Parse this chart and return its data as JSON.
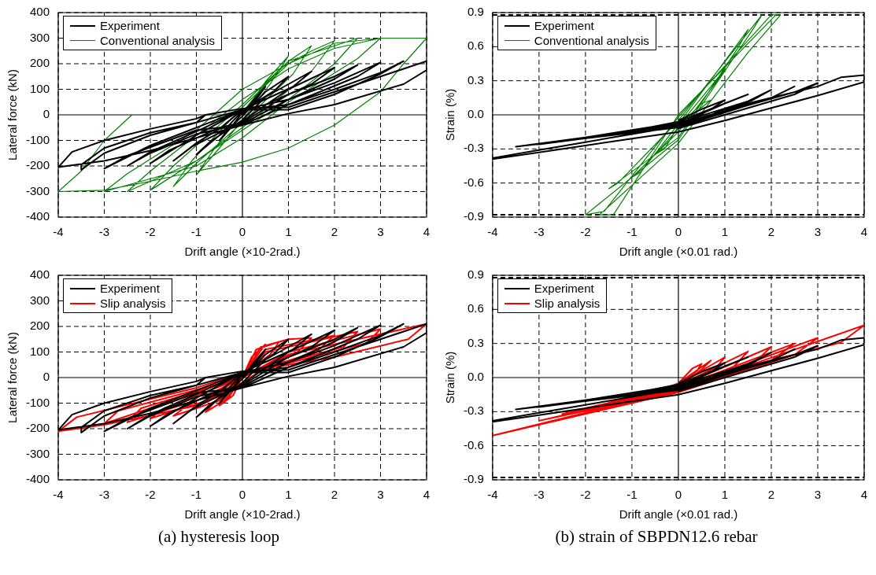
{
  "chart_data": [
    {
      "type": "line",
      "xlabel": "Drift angle (×10-2rad.)",
      "ylabel": "Lateral force (kN)",
      "xlim": [
        -4,
        4
      ],
      "xticks": [
        -4,
        -3,
        -2,
        -1,
        0,
        1,
        2,
        3,
        4
      ],
      "ylim": [
        -400,
        400
      ],
      "yticks": [
        -400,
        -300,
        -200,
        -100,
        0,
        100,
        200,
        300,
        400
      ],
      "grid": true,
      "legend": "top left",
      "marker": "none",
      "line_style": "solid",
      "series": [
        {
          "name": "Experiment",
          "color": "#000000",
          "x": [
            0,
            0.25,
            0.5,
            0.3,
            0,
            -0.25,
            -0.5,
            -0.3,
            0,
            0.5,
            1,
            0.7,
            0,
            -0.5,
            -1,
            -0.7,
            0,
            0.5,
            1,
            1.5,
            1.1,
            0,
            -0.5,
            -1,
            -1.5,
            -1.1,
            0,
            1,
            2,
            1.5,
            0.5,
            0,
            -1,
            -2,
            -1.6,
            -0.5,
            0,
            1,
            2,
            2.5,
            2,
            1,
            0,
            -1,
            -2,
            -2.5,
            -2,
            -1,
            0,
            1,
            2,
            3,
            2.5,
            1,
            0,
            -1,
            -2,
            -3,
            -2.5,
            -1,
            0,
            1,
            2,
            3,
            3.5,
            3,
            2,
            1,
            0,
            -1,
            -2,
            -3,
            -3.5,
            -3.5,
            -3,
            -2,
            -1,
            -0.8,
            0,
            1,
            2,
            3,
            4,
            4,
            3.5,
            2,
            1,
            0,
            -1,
            -2,
            -3,
            -4,
            -3.7,
            -3,
            -2,
            -1,
            -0.8
          ],
          "values": [
            0,
            60,
            110,
            60,
            10,
            -50,
            -100,
            -55,
            -5,
            90,
            150,
            95,
            15,
            -80,
            -155,
            -105,
            -20,
            70,
            120,
            170,
            110,
            20,
            -55,
            -110,
            -180,
            -125,
            -25,
            100,
            185,
            120,
            40,
            20,
            -80,
            -190,
            -140,
            -50,
            -30,
            80,
            150,
            195,
            140,
            60,
            20,
            -65,
            -145,
            -200,
            -150,
            -75,
            -35,
            60,
            125,
            205,
            150,
            40,
            20,
            -50,
            -120,
            -210,
            -160,
            -60,
            -40,
            40,
            100,
            165,
            210,
            160,
            80,
            20,
            20,
            -30,
            -80,
            -150,
            -215,
            -195,
            -130,
            -70,
            -30,
            0,
            25,
            30,
            90,
            150,
            210,
            175,
            120,
            40,
            5,
            -40,
            -90,
            -140,
            -180,
            -205,
            -145,
            -100,
            -55,
            -15,
            0
          ]
        },
        {
          "name": "Conventional analysis",
          "color": "#008000",
          "x": [
            0,
            0.5,
            1,
            0.6,
            0,
            -0.5,
            -1,
            -0.6,
            0,
            0.5,
            1,
            1.5,
            1.1,
            0,
            -1,
            -1.5,
            -1.1,
            0,
            1,
            1.5,
            2,
            1.5,
            0,
            -1,
            -2,
            -1.5,
            0,
            1,
            2,
            2.5,
            2,
            1,
            0,
            -1,
            -2,
            -2.5,
            -2,
            -1,
            0,
            1,
            2,
            3,
            2.5,
            1,
            0,
            -1,
            -2,
            -3,
            -2.5,
            -1,
            0,
            1,
            2,
            3,
            4,
            3.5,
            3,
            2,
            1,
            0,
            -1,
            -2,
            -3,
            -4,
            -3.5,
            -3,
            -2.4
          ],
          "values": [
            0,
            130,
            230,
            120,
            -20,
            -130,
            -235,
            -130,
            10,
            120,
            210,
            270,
            160,
            -30,
            -190,
            -280,
            -180,
            30,
            200,
            250,
            290,
            170,
            -50,
            -180,
            -295,
            -200,
            40,
            210,
            270,
            300,
            200,
            60,
            -60,
            -180,
            -260,
            -300,
            -220,
            -80,
            60,
            180,
            260,
            300,
            220,
            50,
            -90,
            -200,
            -250,
            -300,
            -230,
            -60,
            100,
            200,
            280,
            300,
            300,
            200,
            90,
            -40,
            -130,
            -185,
            -220,
            -260,
            -295,
            -300,
            -220,
            -100,
            0
          ]
        }
      ]
    },
    {
      "type": "line",
      "xlabel": "Drift angle (×0.01 rad.)",
      "ylabel": "Strain (%)",
      "xlim": [
        -4,
        4
      ],
      "xticks": [
        -4,
        -3,
        -2,
        -1,
        0,
        1,
        2,
        3,
        4
      ],
      "ylim": [
        -0.9,
        0.9
      ],
      "yticks": [
        {
          "value": -0.9,
          "label": "-0.9"
        },
        {
          "value": -0.6,
          "label": "-0.6"
        },
        {
          "value": -0.3,
          "label": "-0.3"
        },
        {
          "value": 0,
          "label": "0.0"
        },
        {
          "value": 0.3,
          "label": "0.3"
        },
        {
          "value": 0.6,
          "label": "0.6"
        },
        {
          "value": 0.9,
          "label": "0.9"
        }
      ],
      "grid": true,
      "legend": "top left",
      "marker": "none",
      "line_style": "solid",
      "ref_lines": [
        {
          "axis": "y",
          "value": 0.88,
          "color": "#000000",
          "line_style": "dashed"
        },
        {
          "axis": "y",
          "value": -0.88,
          "color": "#000000",
          "line_style": "dashed"
        }
      ],
      "series": [
        {
          "name": "Experiment",
          "color": "#000000",
          "x": [
            0,
            0.5,
            1,
            0.7,
            0,
            -1,
            -2,
            -1,
            0,
            1,
            1.5,
            1,
            0,
            -2.5,
            0,
            1.5,
            2,
            1.6,
            0,
            -3,
            0,
            2,
            2.5,
            2,
            0,
            -3.5,
            0,
            2.5,
            3,
            2.5,
            0,
            1,
            2,
            3,
            3.5,
            4,
            4,
            3,
            2,
            1,
            0,
            -1,
            -2,
            -3,
            -4,
            -4,
            -3,
            -2,
            -1,
            0
          ],
          "values": [
            -0.05,
            0.05,
            0.13,
            0.05,
            -0.1,
            -0.15,
            -0.2,
            -0.14,
            -0.06,
            0.1,
            0.18,
            0.1,
            -0.08,
            -0.23,
            -0.07,
            0.12,
            0.22,
            0.13,
            -0.1,
            -0.26,
            -0.08,
            0.15,
            0.25,
            0.15,
            -0.11,
            -0.28,
            -0.09,
            0.2,
            0.28,
            0.18,
            -0.12,
            0.05,
            0.15,
            0.25,
            0.33,
            0.35,
            0.29,
            0.17,
            0.06,
            -0.05,
            -0.15,
            -0.21,
            -0.27,
            -0.33,
            -0.39,
            -0.38,
            -0.31,
            -0.24,
            -0.17,
            -0.1
          ]
        },
        {
          "name": "Conventional analysis",
          "color": "#008000",
          "x": [
            0,
            0.5,
            0.7,
            0.3,
            0,
            -0.5,
            -0.3,
            0,
            1,
            0.8,
            0,
            -1,
            -0.8,
            0,
            1.5,
            1.3,
            0,
            -1.5,
            -1.3,
            0,
            1.8,
            1.6,
            0,
            -2,
            -1.6,
            0,
            2,
            2.2,
            1.5,
            0,
            -1.7,
            -1.4,
            0,
            2.1
          ],
          "values": [
            -0.1,
            0.1,
            0.13,
            0,
            -0.12,
            -0.35,
            -0.3,
            -0.1,
            0.4,
            0.28,
            -0.15,
            -0.55,
            -0.5,
            -0.08,
            0.75,
            0.6,
            -0.2,
            -0.65,
            -0.6,
            -0.05,
            0.88,
            0.75,
            -0.22,
            -0.88,
            -0.85,
            -0.02,
            0.88,
            0.88,
            0.55,
            -0.25,
            -0.88,
            -0.88,
            0,
            0.88
          ]
        }
      ]
    },
    {
      "type": "line",
      "xlabel": "Drift angle (×10-2rad.)",
      "ylabel": "Lateral force (kN)",
      "xlim": [
        -4,
        4
      ],
      "xticks": [
        -4,
        -3,
        -2,
        -1,
        0,
        1,
        2,
        3,
        4
      ],
      "ylim": [
        -400,
        400
      ],
      "yticks": [
        -400,
        -300,
        -200,
        -100,
        0,
        100,
        200,
        300,
        400
      ],
      "grid": true,
      "legend": "top left",
      "marker": "none",
      "line_style": "solid",
      "annotations": [
        "(a) hysteresis loop"
      ],
      "series": [
        {
          "name": "Experiment",
          "color": "#000000",
          "x": [
            0,
            0.25,
            0.5,
            0.3,
            0,
            -0.25,
            -0.5,
            -0.3,
            0,
            0.5,
            1,
            0.7,
            0,
            -0.5,
            -1,
            -0.7,
            0,
            0.5,
            1,
            1.5,
            1.1,
            0,
            -0.5,
            -1,
            -1.5,
            -1.1,
            0,
            1,
            2,
            1.5,
            0.5,
            0,
            -1,
            -2,
            -1.6,
            -0.5,
            0,
            1,
            2,
            2.5,
            2,
            1,
            0,
            -1,
            -2,
            -2.5,
            -2,
            -1,
            0,
            1,
            2,
            3,
            2.5,
            1,
            0,
            -1,
            -2,
            -3,
            -2.5,
            -1,
            0,
            1,
            2,
            3,
            3.5,
            3,
            2,
            1,
            0,
            -1,
            -2,
            -3,
            -3.5,
            -3.5,
            -3,
            -2,
            -1,
            -0.8,
            0,
            1,
            2,
            3,
            4,
            4,
            3.5,
            2,
            1,
            0,
            -1,
            -2,
            -3,
            -4,
            -3.7,
            -3,
            -2,
            -1,
            -0.8
          ],
          "values": [
            0,
            60,
            110,
            60,
            10,
            -50,
            -100,
            -55,
            -5,
            90,
            150,
            95,
            15,
            -80,
            -155,
            -105,
            -20,
            70,
            120,
            170,
            110,
            20,
            -55,
            -110,
            -180,
            -125,
            -25,
            100,
            185,
            120,
            40,
            20,
            -80,
            -190,
            -140,
            -50,
            -30,
            80,
            150,
            195,
            140,
            60,
            20,
            -65,
            -145,
            -200,
            -150,
            -75,
            -35,
            60,
            125,
            205,
            150,
            40,
            20,
            -50,
            -120,
            -210,
            -160,
            -60,
            -40,
            40,
            100,
            165,
            210,
            160,
            80,
            20,
            20,
            -30,
            -80,
            -150,
            -215,
            -195,
            -130,
            -70,
            -30,
            0,
            25,
            30,
            90,
            150,
            210,
            175,
            120,
            40,
            5,
            -40,
            -90,
            -140,
            -180,
            -205,
            -145,
            -100,
            -55,
            -15,
            0
          ]
        },
        {
          "name": "Slip analysis",
          "color": "#ff0000",
          "x": [
            0,
            0.2,
            0.5,
            0.3,
            0,
            -0.2,
            -0.5,
            -0.3,
            0,
            0.3,
            0.8,
            0.6,
            0,
            -0.3,
            -0.8,
            -0.6,
            0,
            0.4,
            1,
            1.5,
            1.2,
            0,
            -0.5,
            -1.5,
            -1.2,
            0,
            0.5,
            2,
            1.6,
            0,
            -0.5,
            -2,
            -1.7,
            0,
            0.5,
            2.5,
            2.2,
            0,
            -0.5,
            -2.5,
            -2.2,
            0,
            1,
            3,
            2.7,
            0,
            -1,
            -3,
            -2.7,
            0,
            1,
            4,
            3.6,
            2,
            0,
            -1,
            -3.6,
            -4,
            -3,
            -1,
            0,
            0.5
          ],
          "values": [
            0,
            80,
            130,
            80,
            10,
            -70,
            -110,
            -70,
            0,
            110,
            140,
            90,
            10,
            -80,
            -135,
            -95,
            0,
            120,
            150,
            155,
            100,
            10,
            -90,
            -150,
            -110,
            0,
            110,
            165,
            100,
            10,
            -75,
            -160,
            -120,
            0,
            100,
            180,
            120,
            15,
            -60,
            -175,
            -120,
            0,
            100,
            190,
            135,
            10,
            -60,
            -180,
            -130,
            0,
            90,
            210,
            150,
            80,
            20,
            -40,
            -155,
            -210,
            -185,
            -110,
            -20,
            40
          ]
        }
      ]
    },
    {
      "type": "line",
      "xlabel": "Drift angle (×0.01 rad.)",
      "ylabel": "Strain (%)",
      "xlim": [
        -4,
        4
      ],
      "xticks": [
        -4,
        -3,
        -2,
        -1,
        0,
        1,
        2,
        3,
        4
      ],
      "ylim": [
        -0.9,
        0.9
      ],
      "yticks": [
        {
          "value": -0.9,
          "label": "-0.9"
        },
        {
          "value": -0.6,
          "label": "-0.6"
        },
        {
          "value": -0.3,
          "label": "-0.3"
        },
        {
          "value": 0,
          "label": "0.0"
        },
        {
          "value": 0.3,
          "label": "0.3"
        },
        {
          "value": 0.6,
          "label": "0.6"
        },
        {
          "value": 0.9,
          "label": "0.9"
        }
      ],
      "grid": true,
      "legend": "top left",
      "marker": "none",
      "line_style": "solid",
      "annotations": [
        "(b) strain of SBPDN12.6 rebar"
      ],
      "ref_lines": [
        {
          "axis": "y",
          "value": 0.88,
          "color": "#000000",
          "line_style": "dashed"
        },
        {
          "axis": "y",
          "value": -0.88,
          "color": "#000000",
          "line_style": "dashed"
        }
      ],
      "series": [
        {
          "name": "Experiment",
          "color": "#000000",
          "x": [
            0,
            0.5,
            1,
            0.7,
            0,
            -1,
            -2,
            -1,
            0,
            1,
            1.5,
            1,
            0,
            -2.5,
            0,
            1.5,
            2,
            1.6,
            0,
            -3,
            0,
            2,
            2.5,
            2,
            0,
            -3.5,
            0,
            2.5,
            3,
            2.5,
            0,
            1,
            2,
            3,
            3.5,
            4,
            4,
            3,
            2,
            1,
            0,
            -1,
            -2,
            -3,
            -4,
            -4,
            -3,
            -2,
            -1,
            0
          ],
          "values": [
            -0.05,
            0.05,
            0.13,
            0.05,
            -0.1,
            -0.15,
            -0.2,
            -0.14,
            -0.06,
            0.1,
            0.18,
            0.1,
            -0.08,
            -0.23,
            -0.07,
            0.12,
            0.22,
            0.13,
            -0.1,
            -0.26,
            -0.08,
            0.15,
            0.25,
            0.15,
            -0.11,
            -0.28,
            -0.09,
            0.2,
            0.28,
            0.18,
            -0.12,
            0.05,
            0.15,
            0.25,
            0.33,
            0.35,
            0.29,
            0.17,
            0.06,
            -0.05,
            -0.15,
            -0.21,
            -0.27,
            -0.33,
            -0.39,
            -0.38,
            -0.31,
            -0.24,
            -0.17,
            -0.1
          ]
        },
        {
          "name": "Slip analysis",
          "color": "#ff0000",
          "x": [
            0,
            0.3,
            0.5,
            0.4,
            0,
            -0.5,
            0,
            0.7,
            0.5,
            0,
            -1,
            0,
            1,
            0.8,
            0,
            -1.5,
            0,
            1.5,
            1.2,
            0,
            -2,
            0,
            2,
            1.6,
            0,
            -2.5,
            0,
            2.5,
            2,
            0,
            -3,
            0,
            3,
            2.5,
            0,
            -4,
            -3.5,
            0,
            4,
            3.5,
            2,
            0
          ],
          "values": [
            -0.05,
            0.08,
            0.12,
            0.06,
            -0.07,
            -0.13,
            -0.05,
            0.15,
            0.07,
            -0.08,
            -0.17,
            -0.06,
            0.18,
            0.08,
            -0.09,
            -0.22,
            -0.07,
            0.23,
            0.1,
            -0.1,
            -0.27,
            -0.08,
            0.27,
            0.12,
            -0.11,
            -0.32,
            -0.09,
            0.3,
            0.15,
            -0.12,
            -0.38,
            -0.1,
            0.35,
            0.2,
            -0.13,
            -0.51,
            -0.46,
            -0.11,
            0.46,
            0.31,
            0.15,
            -0.09
          ]
        }
      ]
    }
  ]
}
